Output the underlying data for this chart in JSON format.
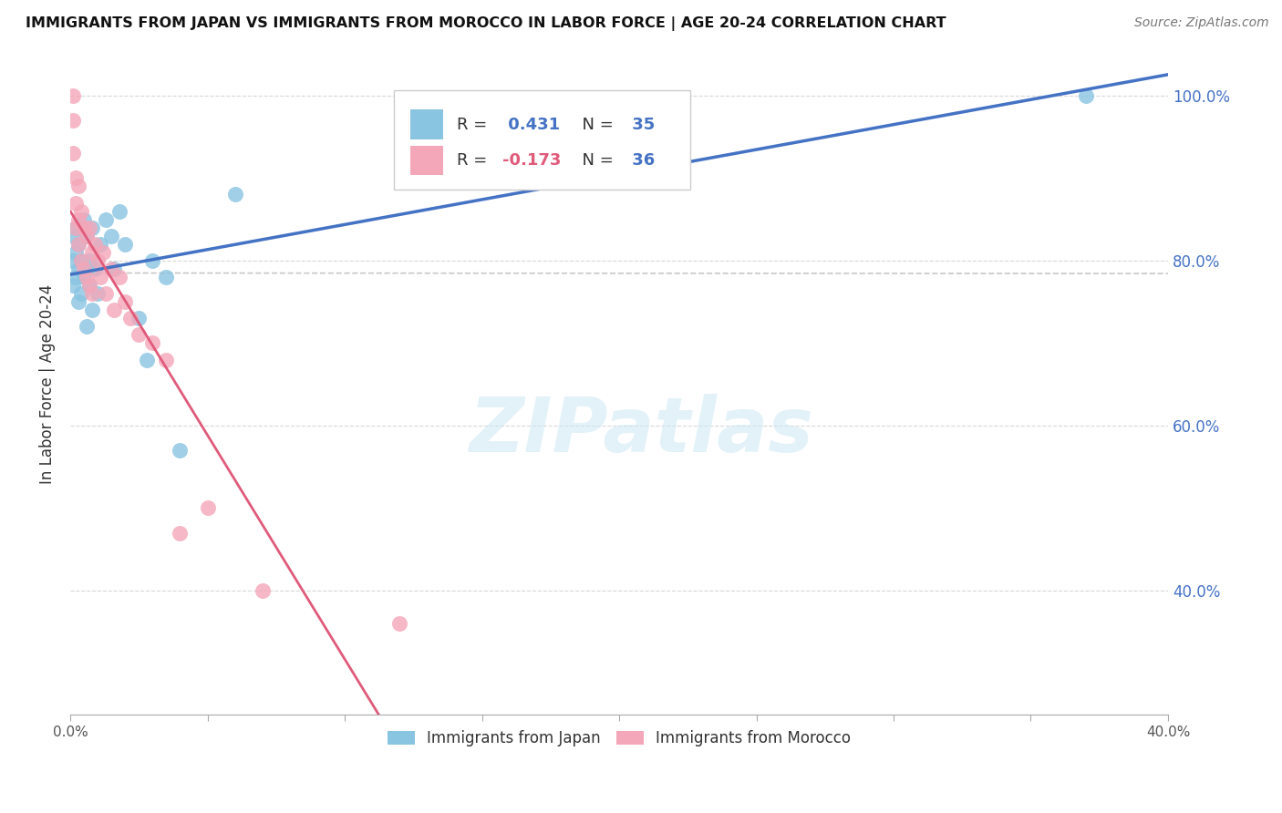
{
  "title": "IMMIGRANTS FROM JAPAN VS IMMIGRANTS FROM MOROCCO IN LABOR FORCE | AGE 20-24 CORRELATION CHART",
  "source": "Source: ZipAtlas.com",
  "ylabel": "In Labor Force | Age 20-24",
  "xlim": [
    0.0,
    0.4
  ],
  "ylim": [
    0.25,
    1.05
  ],
  "xticks": [
    0.0,
    0.05,
    0.1,
    0.15,
    0.2,
    0.25,
    0.3,
    0.35,
    0.4
  ],
  "yticks": [
    0.4,
    0.6,
    0.8,
    1.0
  ],
  "ytick_labels": [
    "40.0%",
    "60.0%",
    "80.0%",
    "100.0%"
  ],
  "xtick_left_label": "0.0%",
  "xtick_right_label": "40.0%",
  "japan_color": "#89c4e1",
  "morocco_color": "#f4a7b9",
  "japan_R": 0.431,
  "japan_N": 35,
  "morocco_R": -0.173,
  "morocco_N": 36,
  "japan_line_color": "#4472c4",
  "morocco_line_color": "#e05a7a",
  "overall_line_color": "#c8c8c8",
  "japan_x": [
    0.001,
    0.001,
    0.001,
    0.002,
    0.002,
    0.002,
    0.003,
    0.003,
    0.003,
    0.004,
    0.004,
    0.005,
    0.005,
    0.006,
    0.006,
    0.007,
    0.007,
    0.008,
    0.008,
    0.009,
    0.01,
    0.011,
    0.013,
    0.015,
    0.016,
    0.018,
    0.02,
    0.025,
    0.028,
    0.03,
    0.035,
    0.04,
    0.06,
    0.2,
    0.37
  ],
  "japan_y": [
    0.83,
    0.8,
    0.77,
    0.84,
    0.81,
    0.78,
    0.82,
    0.79,
    0.75,
    0.8,
    0.76,
    0.85,
    0.78,
    0.83,
    0.72,
    0.8,
    0.77,
    0.84,
    0.74,
    0.79,
    0.76,
    0.82,
    0.85,
    0.83,
    0.79,
    0.86,
    0.82,
    0.73,
    0.68,
    0.8,
    0.78,
    0.57,
    0.88,
    0.96,
    1.0
  ],
  "morocco_x": [
    0.001,
    0.001,
    0.001,
    0.002,
    0.002,
    0.002,
    0.003,
    0.003,
    0.003,
    0.004,
    0.004,
    0.005,
    0.005,
    0.006,
    0.006,
    0.007,
    0.007,
    0.008,
    0.008,
    0.009,
    0.01,
    0.011,
    0.012,
    0.013,
    0.015,
    0.016,
    0.018,
    0.02,
    0.022,
    0.025,
    0.03,
    0.035,
    0.04,
    0.05,
    0.07,
    0.12
  ],
  "morocco_y": [
    1.0,
    0.97,
    0.93,
    0.9,
    0.87,
    0.84,
    0.89,
    0.85,
    0.82,
    0.86,
    0.8,
    0.84,
    0.79,
    0.83,
    0.78,
    0.84,
    0.77,
    0.81,
    0.76,
    0.82,
    0.8,
    0.78,
    0.81,
    0.76,
    0.79,
    0.74,
    0.78,
    0.75,
    0.73,
    0.71,
    0.7,
    0.68,
    0.47,
    0.5,
    0.4,
    0.36
  ],
  "background_color": "#ffffff",
  "grid_color": "#d8d8d8",
  "watermark_text": "ZIPatlas",
  "legend_japan_label": "Immigrants from Japan",
  "legend_morocco_label": "Immigrants from Morocco",
  "japan_R_color": "#4472c4",
  "morocco_R_color": "#e05a7a",
  "N_color": "#4472c4"
}
